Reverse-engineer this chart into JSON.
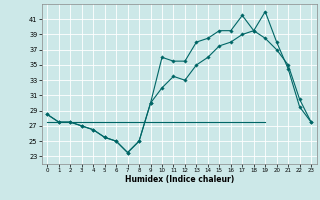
{
  "xlabel": "Humidex (Indice chaleur)",
  "background_color": "#cce8e8",
  "grid_color": "#ffffff",
  "line_color": "#006666",
  "xlim": [
    -0.5,
    23.5
  ],
  "ylim": [
    22,
    43
  ],
  "yticks": [
    23,
    25,
    27,
    29,
    31,
    33,
    35,
    37,
    39,
    41
  ],
  "xticks": [
    0,
    1,
    2,
    3,
    4,
    5,
    6,
    7,
    8,
    9,
    10,
    11,
    12,
    13,
    14,
    15,
    16,
    17,
    18,
    19,
    20,
    21,
    22,
    23
  ],
  "series1_x": [
    0,
    1,
    2,
    3,
    4,
    5,
    6,
    7,
    8,
    9,
    10,
    11,
    12,
    13,
    14,
    15,
    16,
    17,
    18,
    19,
    20,
    21,
    22,
    23
  ],
  "series1_y": [
    28.5,
    27.5,
    27.5,
    27.0,
    26.5,
    25.5,
    25.0,
    23.5,
    25.0,
    30.0,
    36.0,
    35.5,
    35.5,
    38.0,
    38.5,
    39.5,
    39.5,
    41.5,
    39.5,
    42.0,
    38.0,
    34.5,
    29.5,
    27.5
  ],
  "series2_x": [
    0,
    1,
    2,
    3,
    4,
    5,
    6,
    7,
    8,
    9,
    10,
    11,
    12,
    13,
    14,
    15,
    16,
    17,
    18,
    19,
    20,
    21,
    22,
    23
  ],
  "series2_y": [
    28.5,
    27.5,
    27.5,
    27.0,
    26.5,
    25.5,
    25.0,
    23.5,
    25.0,
    30.0,
    32.0,
    33.5,
    33.0,
    35.0,
    36.0,
    37.5,
    38.0,
    39.0,
    39.5,
    38.5,
    37.0,
    35.0,
    30.5,
    27.5
  ],
  "series3_x": [
    0,
    19
  ],
  "series3_y": [
    27.5,
    27.5
  ],
  "marker_style": "D",
  "marker_size": 1.8,
  "linewidth": 0.8
}
